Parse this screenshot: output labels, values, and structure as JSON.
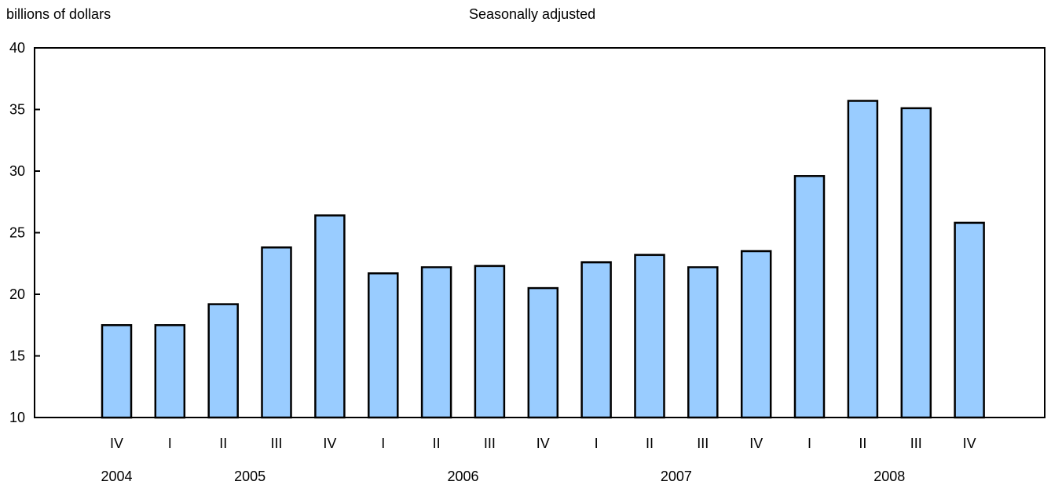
{
  "chart_data": {
    "type": "bar",
    "ylabel": "billions of dollars",
    "subtitle": "Seasonally adjusted",
    "ylim": [
      10,
      40
    ],
    "yticks": [
      10,
      15,
      20,
      25,
      30,
      35,
      40
    ],
    "grid": false,
    "categories": [
      "IV",
      "I",
      "II",
      "III",
      "IV",
      "I",
      "II",
      "III",
      "IV",
      "I",
      "II",
      "III",
      "IV",
      "I",
      "II",
      "III",
      "IV"
    ],
    "year_labels": [
      {
        "label": "2004",
        "category_index": 0
      },
      {
        "label": "2005",
        "category_index": 2.5
      },
      {
        "label": "2006",
        "category_index": 6.5
      },
      {
        "label": "2007",
        "category_index": 10.5
      },
      {
        "label": "2008",
        "category_index": 14.5
      }
    ],
    "values": [
      17.5,
      17.5,
      19.2,
      23.8,
      26.4,
      21.7,
      22.2,
      22.3,
      20.5,
      22.6,
      23.2,
      22.2,
      23.5,
      29.6,
      35.7,
      35.1,
      25.8
    ],
    "colors": {
      "bar_fill": "#99ccff",
      "bar_stroke": "#000000",
      "axis": "#000000"
    }
  }
}
